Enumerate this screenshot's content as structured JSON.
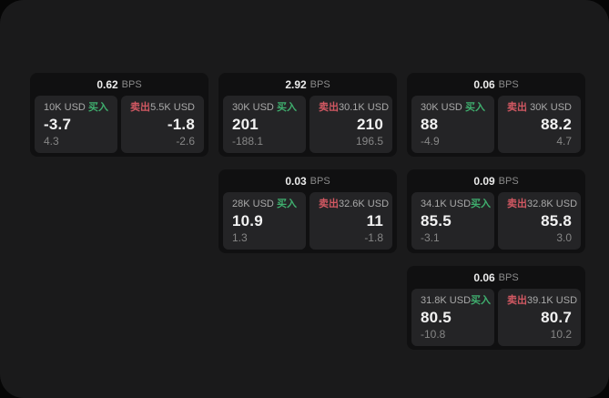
{
  "unit_label": "BPS",
  "colors": {
    "buy_accent": "#3fae6e",
    "sell_accent": "#d15862",
    "container_bg": "#1a1a1b",
    "card_bg": "#101011",
    "panel_bg": "#242426"
  },
  "cards": [
    {
      "bps": "0.62",
      "unit": "BPS",
      "buy": {
        "amount": "10K USD",
        "action": "买入",
        "price": "-3.7",
        "sub": "4.3"
      },
      "sell": {
        "amount": "5.5K USD",
        "action": "卖出",
        "price": "-1.8",
        "sub": "-2.6"
      }
    },
    {
      "bps": "2.92",
      "unit": "BPS",
      "buy": {
        "amount": "30K USD",
        "action": "买入",
        "price": "201",
        "sub": "-188.1"
      },
      "sell": {
        "amount": "30.1K USD",
        "action": "卖出",
        "price": "210",
        "sub": "196.5"
      }
    },
    {
      "bps": "0.06",
      "unit": "BPS",
      "buy": {
        "amount": "30K USD",
        "action": "买入",
        "price": "88",
        "sub": "-4.9"
      },
      "sell": {
        "amount": "30K USD",
        "action": "卖出",
        "price": "88.2",
        "sub": "4.7"
      }
    },
    {
      "bps": "0.03",
      "unit": "BPS",
      "buy": {
        "amount": "28K USD",
        "action": "买入",
        "price": "10.9",
        "sub": "1.3"
      },
      "sell": {
        "amount": "32.6K USD",
        "action": "卖出",
        "price": "11",
        "sub": "-1.8"
      }
    },
    {
      "bps": "0.09",
      "unit": "BPS",
      "buy": {
        "amount": "34.1K USD",
        "action": "买入",
        "price": "85.5",
        "sub": "-3.1"
      },
      "sell": {
        "amount": "32.8K USD",
        "action": "卖出",
        "price": "85.8",
        "sub": "3.0"
      }
    },
    {
      "bps": "0.06",
      "unit": "BPS",
      "buy": {
        "amount": "31.8K USD",
        "action": "买入",
        "price": "80.5",
        "sub": "-10.8"
      },
      "sell": {
        "amount": "39.1K USD",
        "action": "卖出",
        "price": "80.7",
        "sub": "10.2"
      }
    }
  ]
}
